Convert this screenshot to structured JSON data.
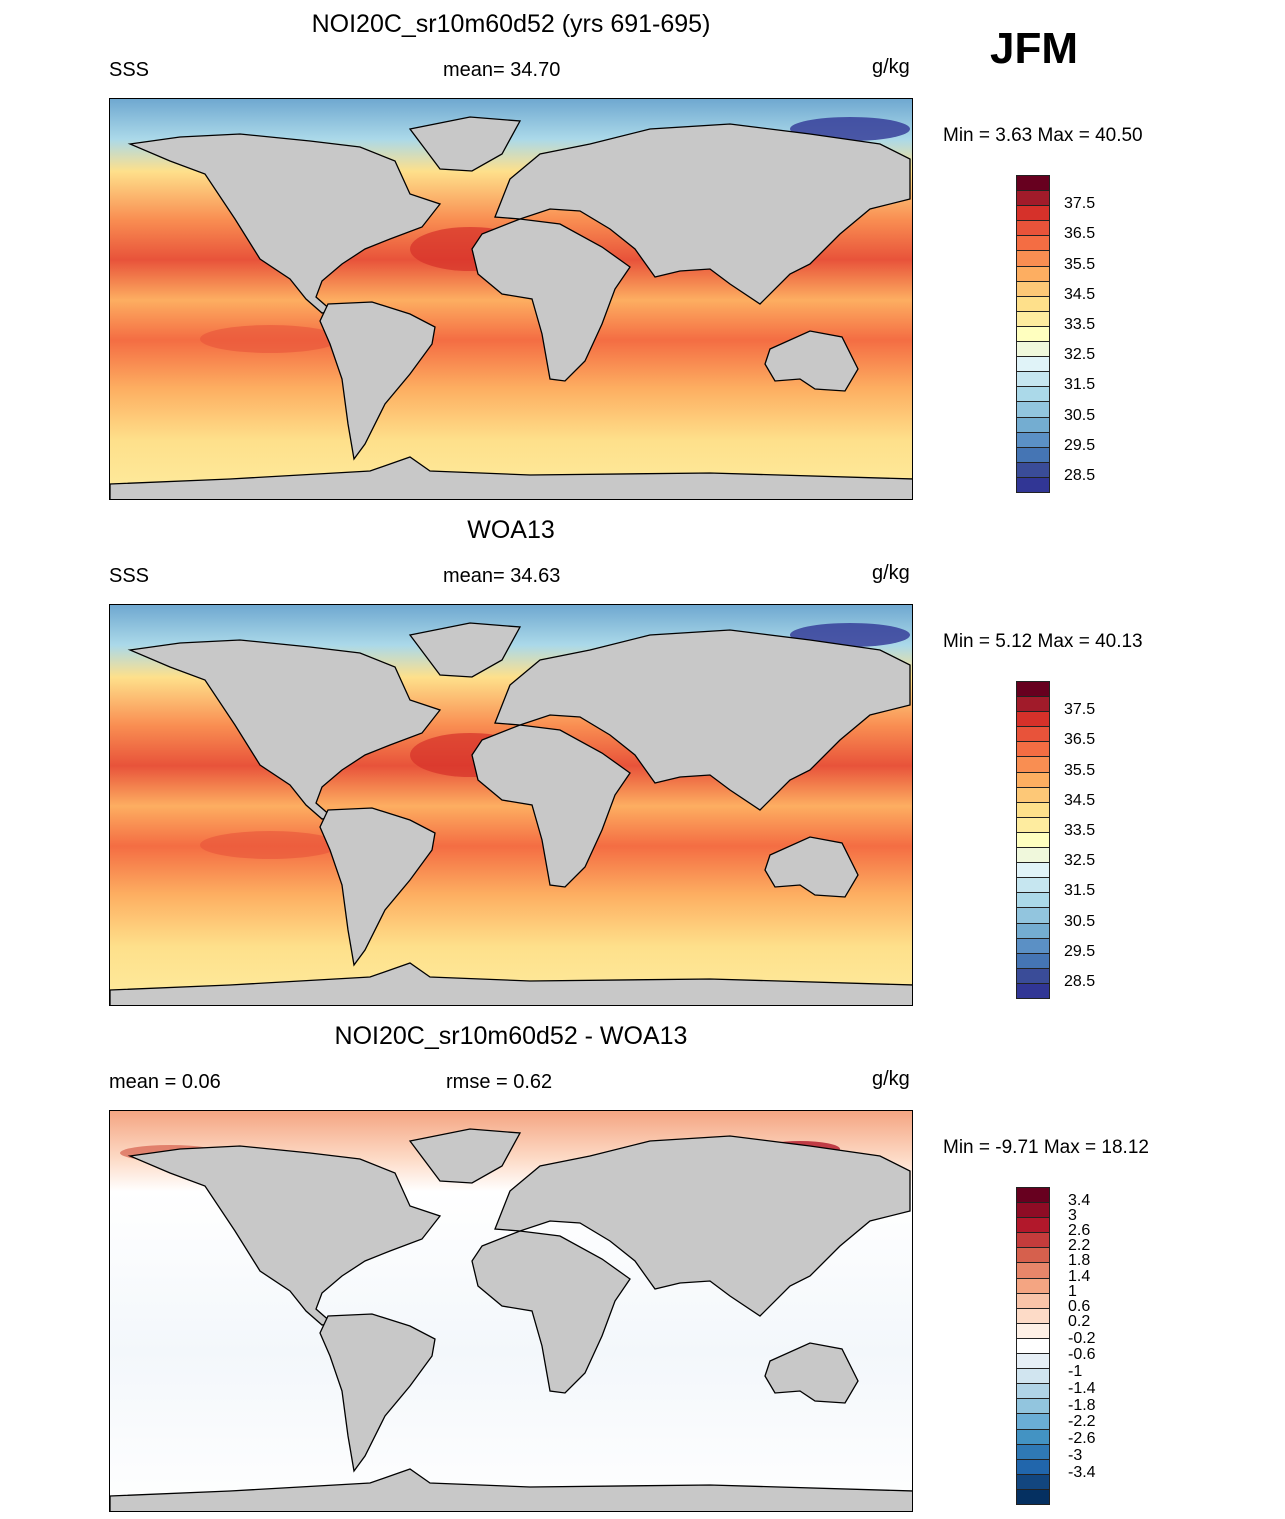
{
  "season": "JFM",
  "panels": [
    {
      "title": "NOI20C_sr10m60d52 (yrs 691-695)",
      "left_label": "SSS",
      "center_label": "mean=  34.70",
      "units": "g/kg",
      "minmax": "Min =   3.63 Max =  40.50",
      "kind": "sss"
    },
    {
      "title": "WOA13",
      "left_label": "SSS",
      "center_label": "mean=  34.63",
      "units": "g/kg",
      "minmax": "Min =   5.12 Max =  40.13",
      "kind": "sss"
    },
    {
      "title": "NOI20C_sr10m60d52 - WOA13",
      "left_label": "mean =    0.06",
      "center_label": "rmse =    0.62",
      "units": "g/kg",
      "minmax": "Min =  -9.71 Max =  18.12",
      "kind": "diff"
    }
  ],
  "colorbars": {
    "sss": {
      "labels": [
        "37.5",
        "36.5",
        "35.5",
        "34.5",
        "33.5",
        "32.5",
        "31.5",
        "30.5",
        "29.5",
        "28.5"
      ],
      "colors": [
        "#67001f",
        "#a11b2a",
        "#d6312a",
        "#e8533a",
        "#f46d43",
        "#f98e52",
        "#fdae61",
        "#fdc877",
        "#fee08b",
        "#feec9f",
        "#ffffbf",
        "#f0f8dc",
        "#e0f3f8",
        "#c6e6f0",
        "#abd9e9",
        "#92c5de",
        "#74add1",
        "#5b90c5",
        "#4575b4",
        "#3a4c98",
        "#313695"
      ]
    },
    "diff": {
      "labels": [
        "3.4",
        "3",
        "2.6",
        "2.2",
        "1.8",
        "1.4",
        "1",
        "0.6",
        "0.2",
        "-0.2",
        "-0.6",
        "-1",
        "-1.4",
        "-1.8",
        "-2.2",
        "-2.6",
        "-3",
        "-3.4"
      ],
      "extra_labels": [],
      "colors": [
        "#67001f",
        "#8e0c25",
        "#b2182b",
        "#c43c3c",
        "#d6604d",
        "#e7866a",
        "#f4a582",
        "#f9c4a9",
        "#fddbc7",
        "#fef0e6",
        "#ffffff",
        "#e6eff6",
        "#d1e5f0",
        "#b0d4e7",
        "#92c5de",
        "#6aaed6",
        "#4393c3",
        "#2f79b5",
        "#2166ac",
        "#12467f",
        "#053061"
      ]
    }
  }
}
